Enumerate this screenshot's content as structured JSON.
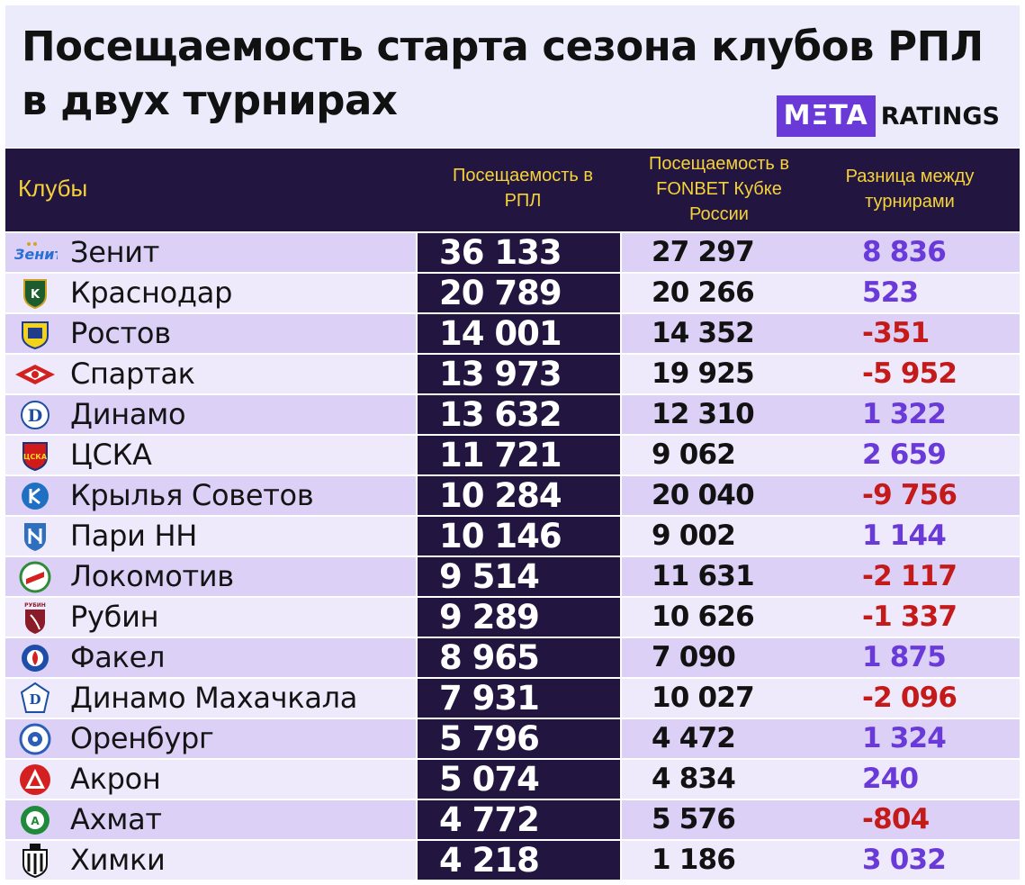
{
  "header": {
    "title_line1": "Посещаемость старта сезона клубов РПЛ",
    "title_line2": "в двух турнирах",
    "logo_box": "MΞTA",
    "logo_text": "RATINGS"
  },
  "chart_data": {
    "type": "table",
    "title": "Посещаемость старта сезона клубов РПЛ в двух турнирах",
    "columns": [
      "Клубы",
      "Посещаемость в РПЛ",
      "Посещаемость в FONBET Кубке России",
      "Разница между турнирами"
    ],
    "colors": {
      "positive": "#6a3ad8",
      "negative": "#c41a1a",
      "rpl_bg": "#221640",
      "header_text": "#f5d23a"
    },
    "rows": [
      {
        "club": "Зенит",
        "rpl": "36 133",
        "cup": "27 297",
        "diff": "8 836",
        "diff_value": 8836,
        "icon": "zenit-logo-icon"
      },
      {
        "club": "Краснодар",
        "rpl": "20 789",
        "cup": "20 266",
        "diff": "523",
        "diff_value": 523,
        "icon": "krasnodar-logo-icon"
      },
      {
        "club": "Ростов",
        "rpl": "14 001",
        "cup": "14 352",
        "diff": "-351",
        "diff_value": -351,
        "icon": "rostov-logo-icon"
      },
      {
        "club": "Спартак",
        "rpl": "13 973",
        "cup": "19 925",
        "diff": "-5 952",
        "diff_value": -5952,
        "icon": "spartak-logo-icon"
      },
      {
        "club": "Динамо",
        "rpl": "13 632",
        "cup": "12 310",
        "diff": "1 322",
        "diff_value": 1322,
        "icon": "dynamo-logo-icon"
      },
      {
        "club": "ЦСКА",
        "rpl": "11 721",
        "cup": "9 062",
        "diff": "2 659",
        "diff_value": 2659,
        "icon": "cska-logo-icon"
      },
      {
        "club": "Крылья Советов",
        "rpl": "10 284",
        "cup": "20 040",
        "diff": "-9 756",
        "diff_value": -9756,
        "icon": "krylia-sovetov-logo-icon"
      },
      {
        "club": "Пари НН",
        "rpl": "10 146",
        "cup": "9 002",
        "diff": "1 144",
        "diff_value": 1144,
        "icon": "pari-nn-logo-icon"
      },
      {
        "club": "Локомотив",
        "rpl": "9 514",
        "cup": "11 631",
        "diff": "-2 117",
        "diff_value": -2117,
        "icon": "lokomotiv-logo-icon"
      },
      {
        "club": "Рубин",
        "rpl": "9 289",
        "cup": "10 626",
        "diff": "-1 337",
        "diff_value": -1337,
        "icon": "rubin-logo-icon"
      },
      {
        "club": "Факел",
        "rpl": "8 965",
        "cup": "7 090",
        "diff": "1 875",
        "diff_value": 1875,
        "icon": "fakel-logo-icon"
      },
      {
        "club": "Динамо Махачкала",
        "rpl": "7 931",
        "cup": "10 027",
        "diff": "-2 096",
        "diff_value": -2096,
        "icon": "dynamo-makhachkala-logo-icon"
      },
      {
        "club": "Оренбург",
        "rpl": "5 796",
        "cup": "4 472",
        "diff": "1 324",
        "diff_value": 1324,
        "icon": "orenburg-logo-icon"
      },
      {
        "club": "Акрон",
        "rpl": "5 074",
        "cup": "4 834",
        "diff": "240",
        "diff_value": 240,
        "icon": "akron-logo-icon"
      },
      {
        "club": "Ахмат",
        "rpl": "4 772",
        "cup": "5 576",
        "diff": "-804",
        "diff_value": -804,
        "icon": "akhmat-logo-icon"
      },
      {
        "club": "Химки",
        "rpl": "4 218",
        "cup": "1 186",
        "diff": "3 032",
        "diff_value": 3032,
        "icon": "khimki-logo-icon"
      }
    ]
  }
}
